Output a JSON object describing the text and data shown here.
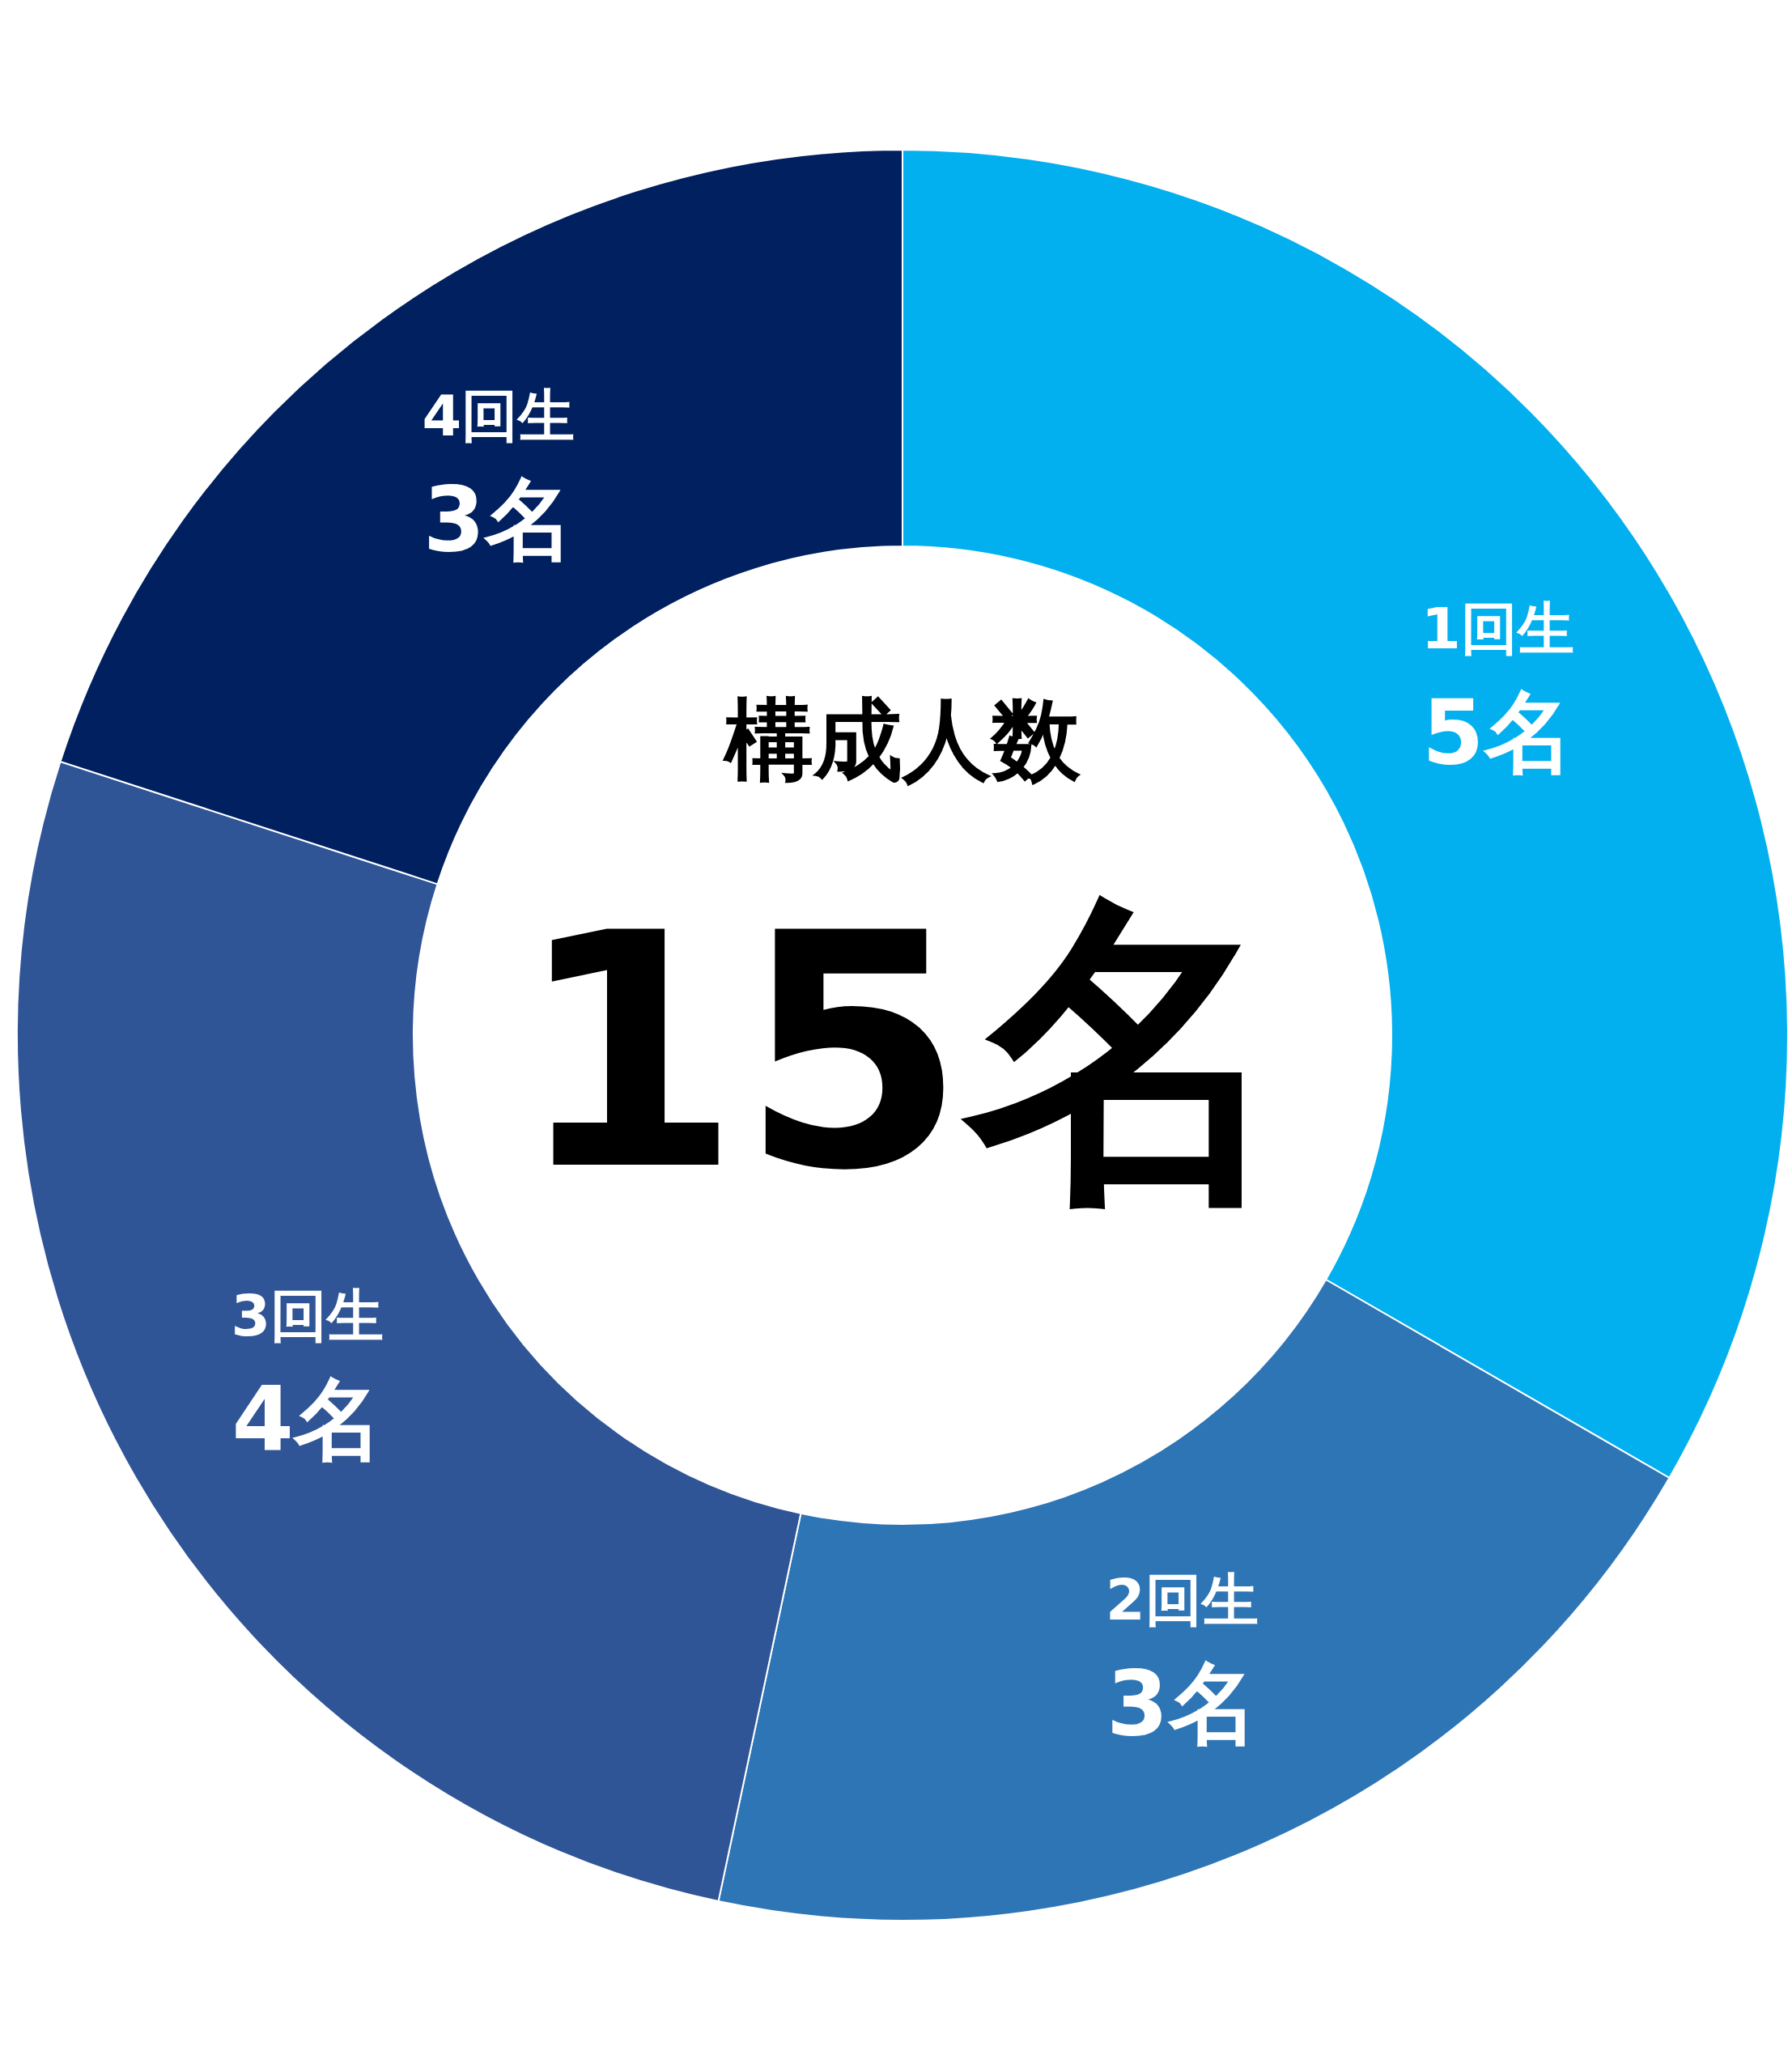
{
  "chart_data": {
    "type": "donut",
    "title": "構成人数",
    "annotations": [
      "15名"
    ],
    "categories": [
      "1回生",
      "2回生",
      "3回生",
      "4回生"
    ],
    "values": [
      5,
      3,
      4,
      3
    ],
    "value_labels": [
      "5名",
      "3名",
      "4名",
      "3名"
    ],
    "colors": [
      "#03b0ef",
      "#2e75b6",
      "#2f5597",
      "#002060"
    ]
  }
}
